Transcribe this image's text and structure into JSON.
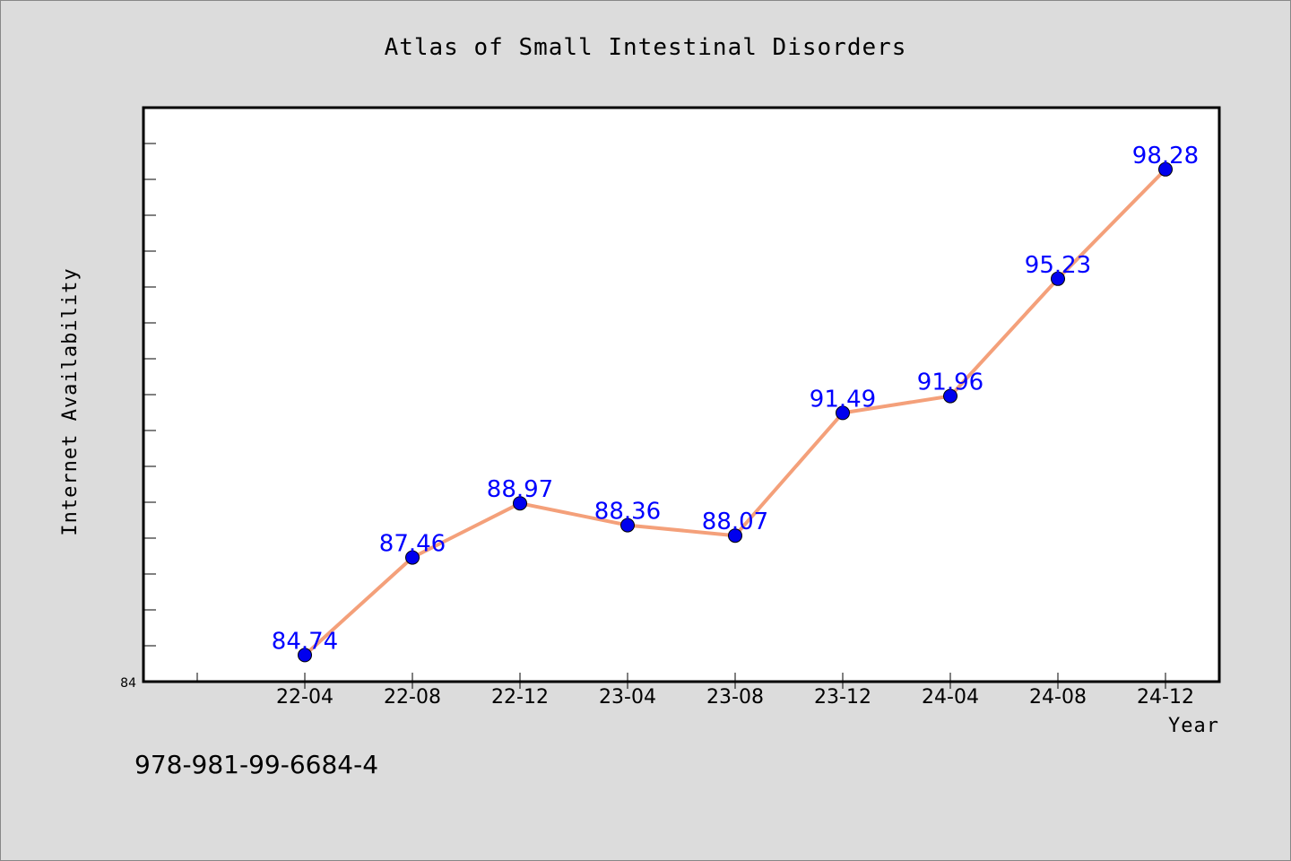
{
  "chart_data": {
    "type": "line",
    "title": "Atlas of Small Intestinal Disorders",
    "xlabel": "Year",
    "ylabel": "Internet Availability",
    "categories": [
      "22-04",
      "22-08",
      "22-12",
      "23-04",
      "23-08",
      "23-12",
      "24-04",
      "24-08",
      "24-12"
    ],
    "series": [
      {
        "values": [
          84.74,
          87.46,
          88.97,
          88.36,
          88.07,
          91.49,
          91.96,
          95.23,
          98.28
        ],
        "labels": [
          "84.74",
          "87.46",
          "88.97",
          "88.36",
          "88.07",
          "91.49",
          "91.96",
          "95.23",
          "98.28"
        ],
        "line_color": "#f4a07a",
        "marker_color": "#0000ee"
      }
    ],
    "ylim": [
      84,
      100
    ],
    "ytick_labels": [
      "84"
    ],
    "grid": false,
    "legend": "none"
  },
  "footer": {
    "isbn": "978-981-99-6684-4"
  }
}
